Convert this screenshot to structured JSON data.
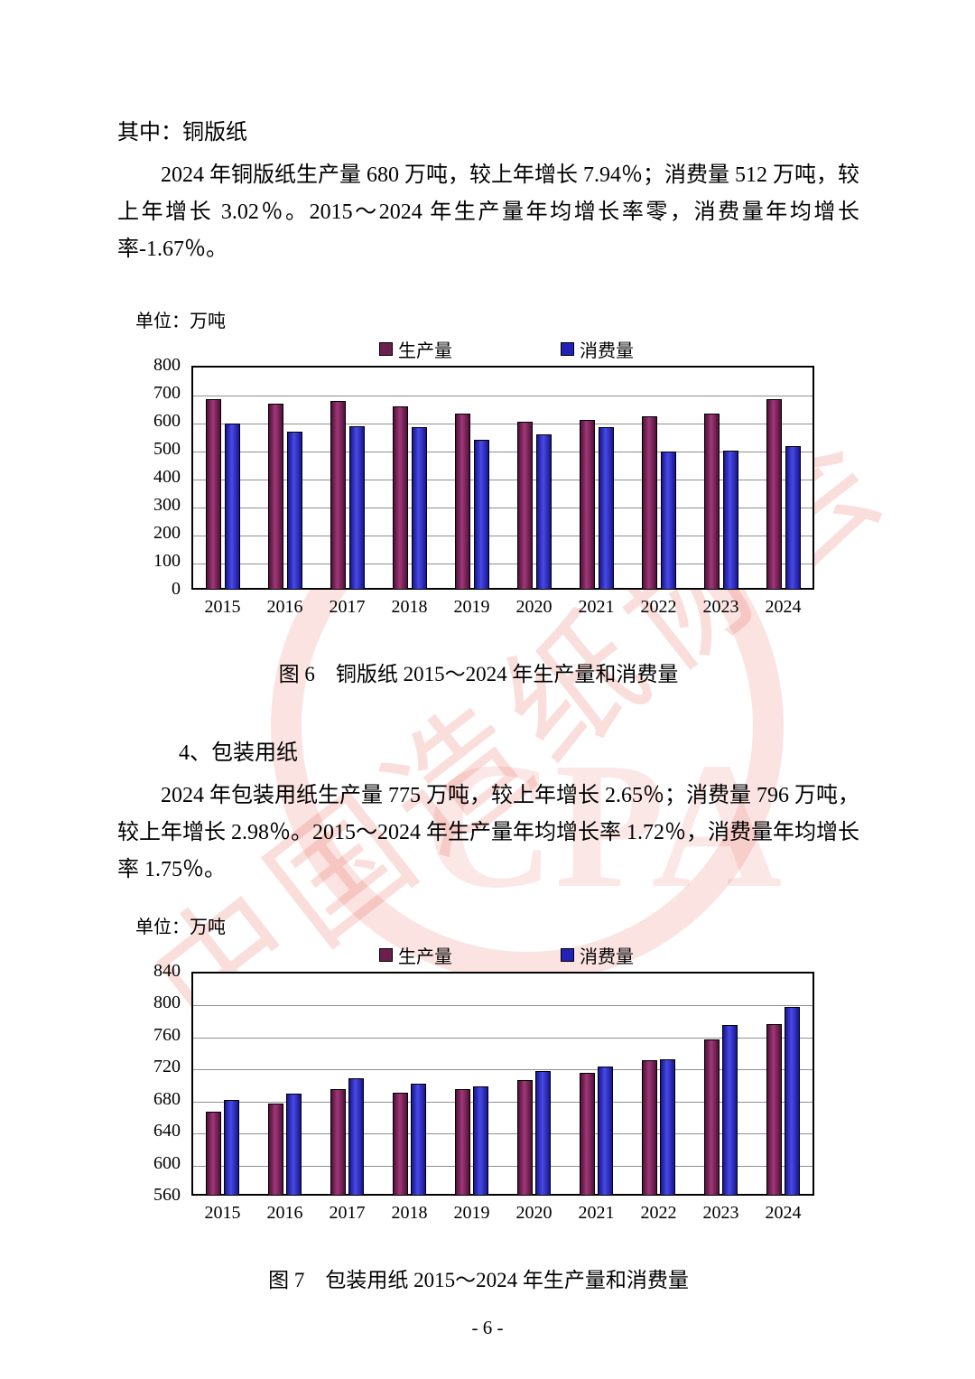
{
  "page": {
    "heading": "其中：铜版纸",
    "para1": "2024 年铜版纸生产量 680 万吨，较上年增长 7.94％；消费量 512 万吨，较上年增长 3.02％。2015～2024 年生产量年均增长率零，消费量年均增长率-1.67％。",
    "section4_heading": "4、包装用纸",
    "para2": "2024 年包装用纸生产量 775 万吨，较上年增长 2.65％；消费量 796 万吨，较上年增长 2.98％。2015～2024 年生产量年均增长率 1.72％，消费量年均增长率 1.75％。",
    "page_number": "- 6 -",
    "watermark": "中国造纸协会",
    "watermark_cpa": "CPA"
  },
  "chart_data": [
    {
      "type": "bar",
      "title": "铜版纸 2015～2024 年生产量和消费量",
      "unit_label": "单位：万吨",
      "caption": "图 6　铜版纸 2015～2024 年生产量和消费量",
      "categories": [
        "2015",
        "2016",
        "2017",
        "2018",
        "2019",
        "2020",
        "2021",
        "2022",
        "2023",
        "2024"
      ],
      "series": [
        {
          "key": "production",
          "name": "生产量",
          "swatch": "#6B1F4F",
          "color_dark": "#4F1038",
          "color_light": "#A03878",
          "values": [
            680,
            665,
            675,
            655,
            630,
            600,
            605,
            620,
            630,
            680
          ]
        },
        {
          "key": "consumption",
          "name": "消费量",
          "swatch": "#2222B8",
          "color_dark": "#16168F",
          "color_light": "#4949E6",
          "values": [
            595,
            565,
            585,
            580,
            535,
            555,
            580,
            495,
            497,
            512
          ]
        }
      ],
      "ylim": [
        0,
        800
      ],
      "ytick_step": 100,
      "grid": true,
      "legend_position": "top"
    },
    {
      "type": "bar",
      "title": "包装用纸 2015～2024 年生产量和消费量",
      "unit_label": "单位：万吨",
      "caption": "图 7　包装用纸 2015～2024 年生产量和消费量",
      "categories": [
        "2015",
        "2016",
        "2017",
        "2018",
        "2019",
        "2020",
        "2021",
        "2022",
        "2023",
        "2024"
      ],
      "series": [
        {
          "key": "production",
          "name": "生产量",
          "swatch": "#6B1F4F",
          "color_dark": "#4F1038",
          "color_light": "#A03878",
          "values": [
            665,
            675,
            693,
            689,
            693,
            705,
            713,
            729,
            755,
            775
          ]
        },
        {
          "key": "consumption",
          "name": "消费量",
          "swatch": "#2222B8",
          "color_dark": "#16168F",
          "color_light": "#4949E6",
          "values": [
            680,
            688,
            707,
            700,
            697,
            716,
            721,
            730,
            773,
            796
          ]
        }
      ],
      "ylim": [
        560,
        840
      ],
      "ytick_step": 40,
      "grid": true,
      "legend_position": "top"
    }
  ]
}
